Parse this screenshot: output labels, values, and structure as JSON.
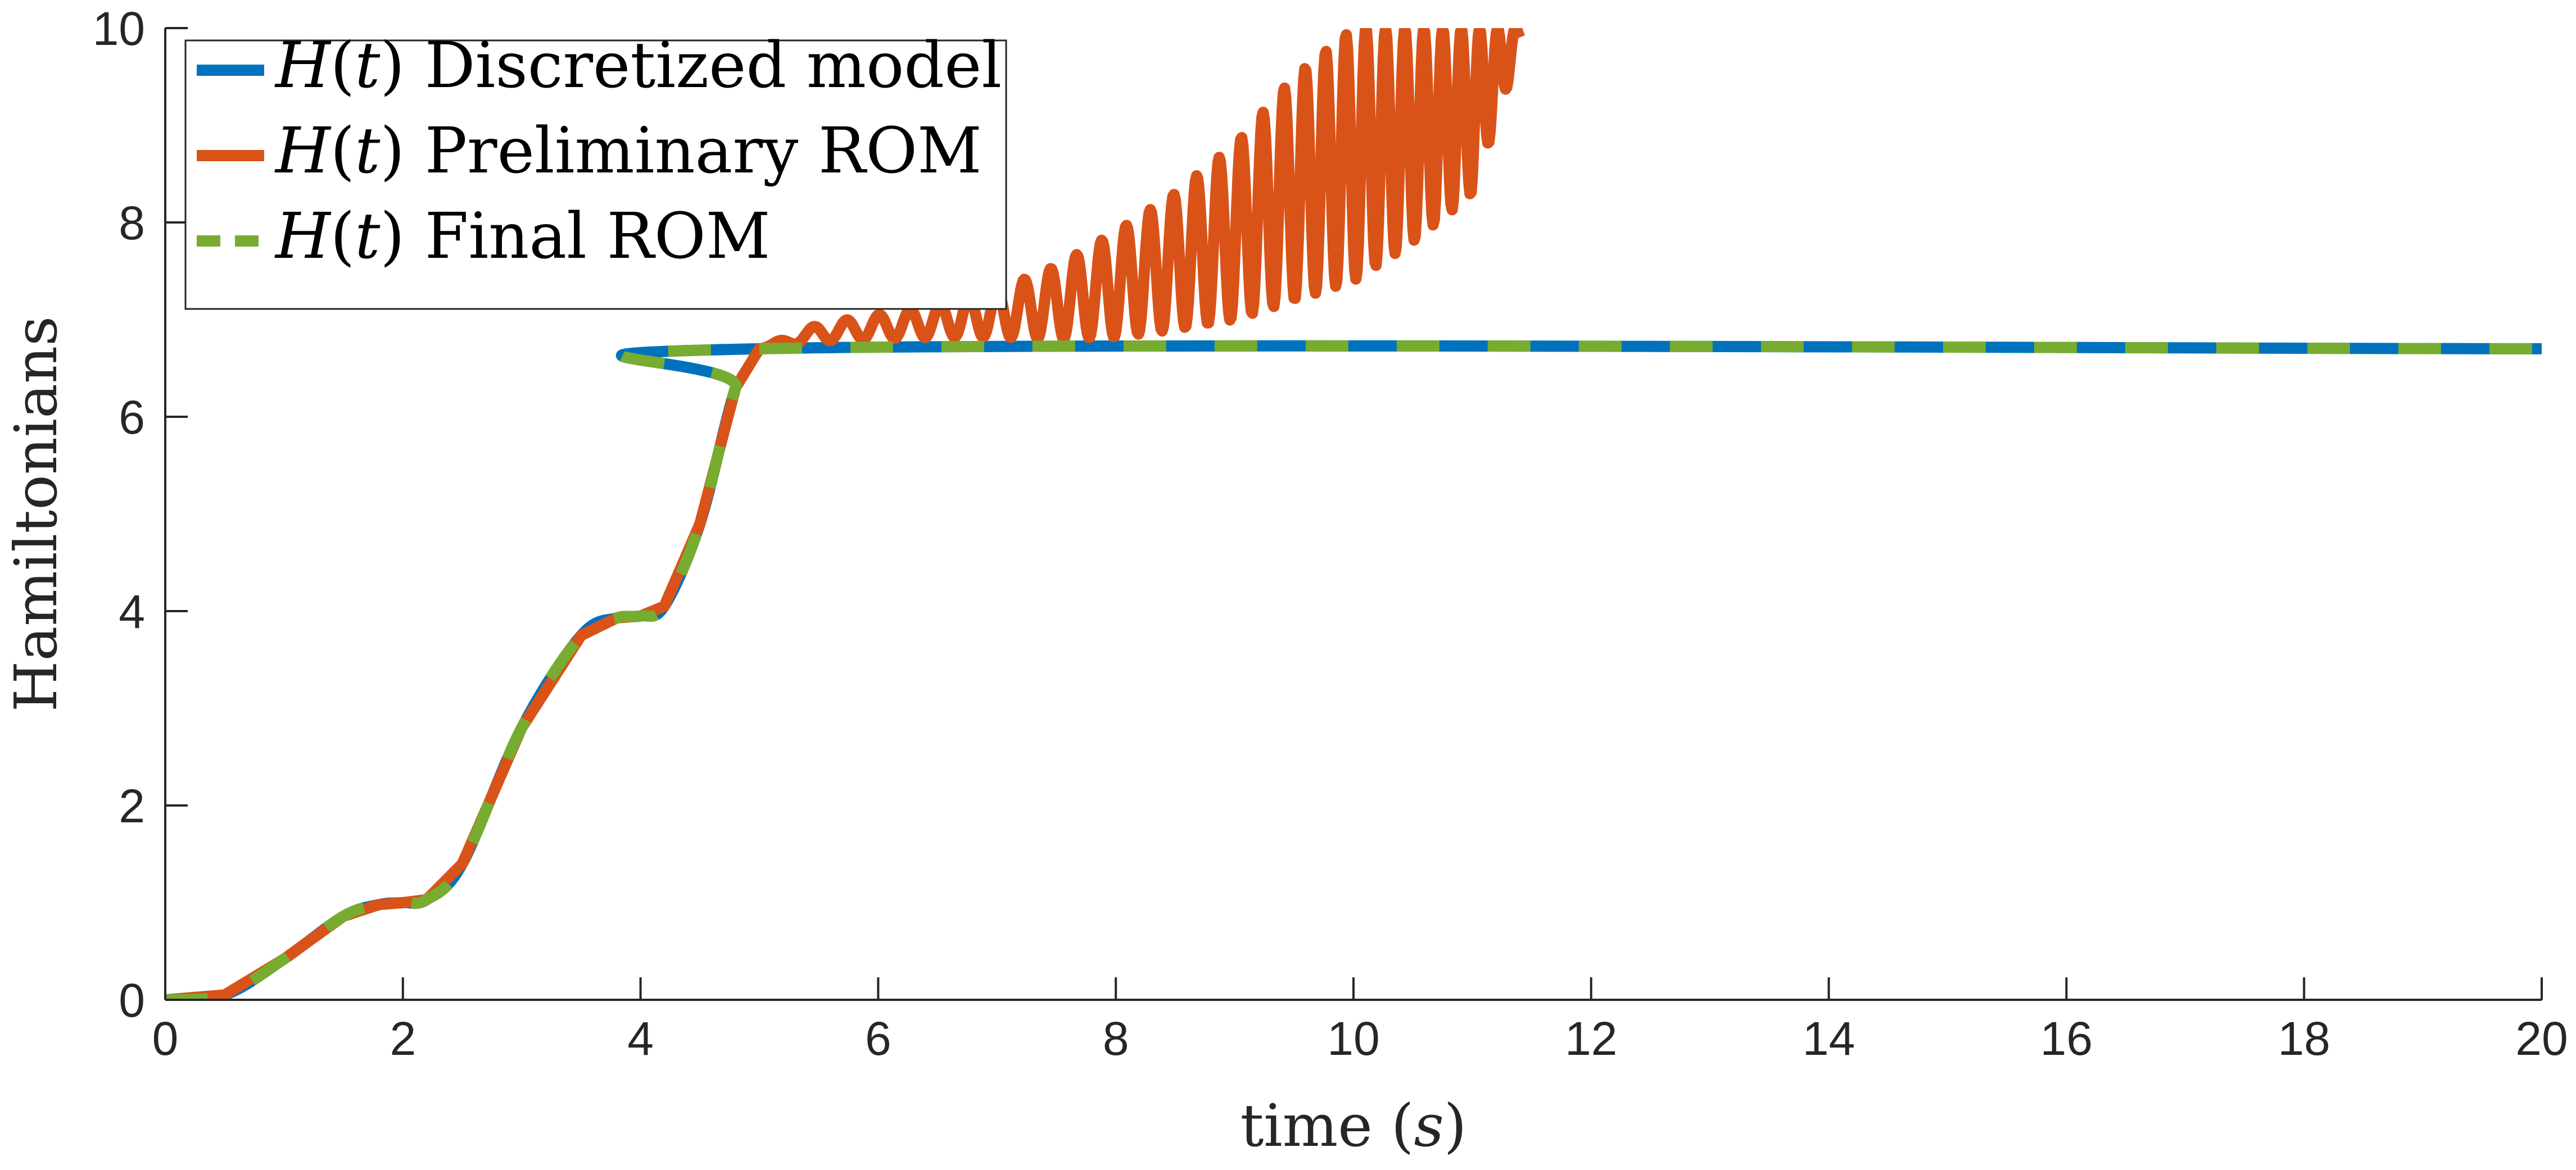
{
  "chart_data": {
    "type": "line",
    "xlabel": "time (s)",
    "ylabel": "Hamiltonians",
    "xlim": [
      0,
      20
    ],
    "ylim": [
      0,
      10
    ],
    "xticks": [
      0,
      2,
      4,
      6,
      8,
      10,
      12,
      14,
      16,
      18,
      20
    ],
    "yticks": [
      0,
      2,
      4,
      6,
      8,
      10
    ],
    "grid": false,
    "legend_position": "top-left",
    "series": [
      {
        "name": "H(t) Discretized model",
        "color": "#0072BD",
        "style": "solid",
        "x": [
          0,
          0.5,
          1.0,
          1.5,
          1.8,
          2.0,
          2.2,
          2.5,
          3.0,
          3.5,
          3.8,
          4.0,
          4.2,
          4.5,
          4.8,
          5.0,
          20.0
        ],
        "y": [
          0,
          0.05,
          0.42,
          0.86,
          0.98,
          1.0,
          1.03,
          1.4,
          2.8,
          3.75,
          3.93,
          3.95,
          4.05,
          4.9,
          6.3,
          6.7,
          6.7
        ]
      },
      {
        "name": "H(t) Preliminary ROM",
        "color": "#D95319",
        "style": "solid",
        "x": [
          0,
          0.5,
          1.0,
          1.5,
          1.8,
          2.0,
          2.2,
          2.5,
          3.0,
          3.5,
          3.8,
          4.0,
          4.2,
          4.5,
          4.8,
          5.0,
          5.5,
          6.0,
          6.5,
          7.0,
          7.5,
          8.0,
          8.5,
          9.0,
          9.5,
          10.0,
          10.5,
          11.0,
          11.4
        ],
        "y": [
          0,
          0.05,
          0.42,
          0.86,
          0.98,
          1.0,
          1.03,
          1.4,
          2.8,
          3.75,
          3.93,
          3.95,
          4.05,
          4.9,
          6.3,
          6.7,
          6.95,
          7.05,
          7.15,
          7.3,
          7.55,
          7.9,
          8.3,
          8.8,
          9.5,
          10.0,
          10.0,
          10.0,
          10.0
        ],
        "oscillation_lower": [
          0,
          0.05,
          0.42,
          0.86,
          0.98,
          1.0,
          1.03,
          1.4,
          2.8,
          3.75,
          3.93,
          3.95,
          4.05,
          4.9,
          6.3,
          6.7,
          6.78,
          6.8,
          6.82,
          6.82,
          6.8,
          6.82,
          6.9,
          7.0,
          7.2,
          7.4,
          7.8,
          8.3,
          9.8
        ]
      },
      {
        "name": "H(t) Final ROM",
        "color": "#77AC30",
        "style": "dashed",
        "x": [
          0,
          0.5,
          1.0,
          1.5,
          1.8,
          2.0,
          2.2,
          2.5,
          3.0,
          3.5,
          3.8,
          4.0,
          4.2,
          4.5,
          4.8,
          5.0,
          20.0
        ],
        "y": [
          0,
          0.05,
          0.42,
          0.86,
          0.98,
          1.0,
          1.03,
          1.4,
          2.8,
          3.75,
          3.93,
          3.95,
          4.05,
          4.9,
          6.3,
          6.7,
          6.7
        ]
      }
    ],
    "legend": {
      "entries": [
        {
          "math": "H(t)",
          "label": "Discretized model"
        },
        {
          "math": "H(t)",
          "label": "Preliminary ROM"
        },
        {
          "math": "H(t)",
          "label": "Final ROM"
        }
      ]
    }
  }
}
